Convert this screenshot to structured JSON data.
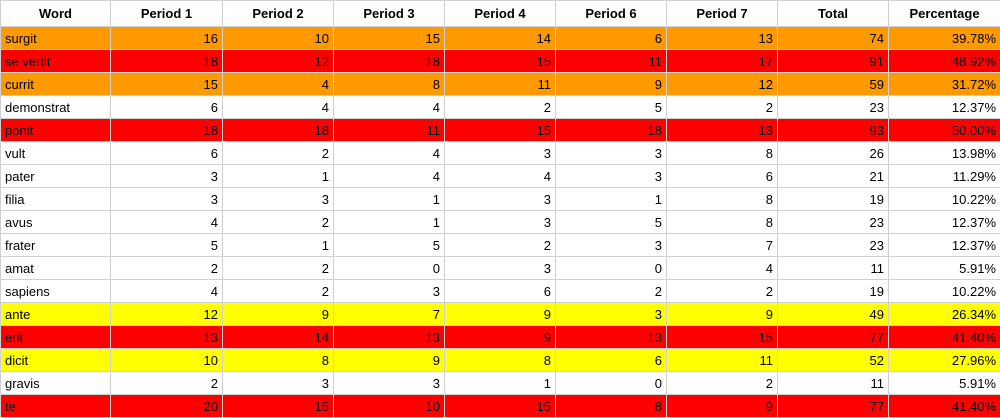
{
  "table": {
    "columns": [
      "Word",
      "Period 1",
      "Period 2",
      "Period 3",
      "Period 4",
      "Period 6",
      "Period 7",
      "Total",
      "Percentage"
    ],
    "rows": [
      {
        "color": "#ff9900",
        "cells": [
          "surgit",
          16,
          10,
          15,
          14,
          6,
          13,
          74,
          "39.78%"
        ]
      },
      {
        "color": "#ff0000",
        "cells": [
          "se vertit",
          18,
          12,
          18,
          15,
          11,
          17,
          91,
          "48.92%"
        ]
      },
      {
        "color": "#ff9900",
        "cells": [
          "currit",
          15,
          4,
          8,
          11,
          9,
          12,
          59,
          "31.72%"
        ]
      },
      {
        "color": "#ffffff",
        "cells": [
          "demonstrat",
          6,
          4,
          4,
          2,
          5,
          2,
          23,
          "12.37%"
        ]
      },
      {
        "color": "#ff0000",
        "cells": [
          "ponit",
          18,
          18,
          11,
          15,
          18,
          13,
          93,
          "50.00%"
        ]
      },
      {
        "color": "#ffffff",
        "cells": [
          "vult",
          6,
          2,
          4,
          3,
          3,
          8,
          26,
          "13.98%"
        ]
      },
      {
        "color": "#ffffff",
        "cells": [
          "pater",
          3,
          1,
          4,
          4,
          3,
          6,
          21,
          "11.29%"
        ]
      },
      {
        "color": "#ffffff",
        "cells": [
          "filia",
          3,
          3,
          1,
          3,
          1,
          8,
          19,
          "10.22%"
        ]
      },
      {
        "color": "#ffffff",
        "cells": [
          "avus",
          4,
          2,
          1,
          3,
          5,
          8,
          23,
          "12.37%"
        ]
      },
      {
        "color": "#ffffff",
        "cells": [
          "frater",
          5,
          1,
          5,
          2,
          3,
          7,
          23,
          "12.37%"
        ]
      },
      {
        "color": "#ffffff",
        "cells": [
          "amat",
          2,
          2,
          0,
          3,
          0,
          4,
          11,
          "5.91%"
        ]
      },
      {
        "color": "#ffffff",
        "cells": [
          "sapiens",
          4,
          2,
          3,
          6,
          2,
          2,
          19,
          "10.22%"
        ]
      },
      {
        "color": "#ffff00",
        "cells": [
          "ante",
          12,
          9,
          7,
          9,
          3,
          9,
          49,
          "26.34%"
        ]
      },
      {
        "color": "#ff0000",
        "cells": [
          "erit",
          13,
          14,
          13,
          9,
          13,
          15,
          77,
          "41.40%"
        ]
      },
      {
        "color": "#ffff00",
        "cells": [
          "dicit",
          10,
          8,
          9,
          8,
          6,
          11,
          52,
          "27.96%"
        ]
      },
      {
        "color": "#ffffff",
        "cells": [
          "gravis",
          2,
          3,
          3,
          1,
          0,
          2,
          11,
          "5.91%"
        ]
      },
      {
        "color": "#ff0000",
        "cells": [
          "te",
          20,
          15,
          10,
          15,
          8,
          9,
          77,
          "41.40%"
        ]
      }
    ]
  }
}
